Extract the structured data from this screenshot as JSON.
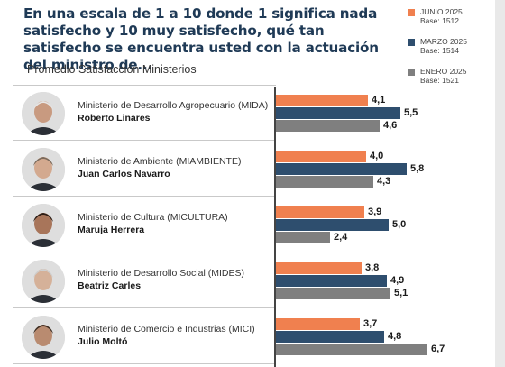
{
  "chart_data": {
    "type": "bar",
    "orientation": "horizontal",
    "title": "En una escala de 1 a 10 donde 1 significa nada satisfecho y 10 muy satisfecho, qué tan satisfecho se encuentra usted con la actuación del ministro de...",
    "subtitle": "Promedio Satisfacción Ministerios",
    "legend_position": "top-right",
    "series": [
      {
        "name": "JUNIO 2025",
        "base": "Base: 1512",
        "color": "#f0804f",
        "values": [
          4.1,
          4.0,
          3.9,
          3.8,
          3.7
        ],
        "labels": [
          "4,1",
          "4,0",
          "3,9",
          "3,8",
          "3,7"
        ]
      },
      {
        "name": "MARZO 2025",
        "base": "Base: 1514",
        "color": "#2e4e6e",
        "values": [
          5.5,
          5.8,
          5.0,
          4.9,
          4.8
        ],
        "labels": [
          "5,5",
          "5,8",
          "5,0",
          "4,9",
          "4,8"
        ]
      },
      {
        "name": "ENERO 2025",
        "base": "Base: 1521",
        "color": "#7f7f7f",
        "values": [
          4.6,
          4.3,
          2.4,
          5.1,
          6.7
        ],
        "labels": [
          "4,6",
          "4,3",
          "2,4",
          "5,1",
          "6,7"
        ]
      }
    ],
    "categories": [
      {
        "ministry": "Ministerio de Desarrollo Agropecuario (MIDA)",
        "minister": "Roberto Linares"
      },
      {
        "ministry": "Ministerio de Ambiente (MIAMBIENTE)",
        "minister": "Juan Carlos Navarro"
      },
      {
        "ministry": "Ministerio de Cultura (MICULTURA)",
        "minister": "Maruja Herrera"
      },
      {
        "ministry": "Ministerio de Desarrollo Social (MIDES)",
        "minister": "Beatriz Carles"
      },
      {
        "ministry": "Ministerio de Comercio e Industrias (MICI)",
        "minister": "Julio Moltó"
      }
    ]
  }
}
